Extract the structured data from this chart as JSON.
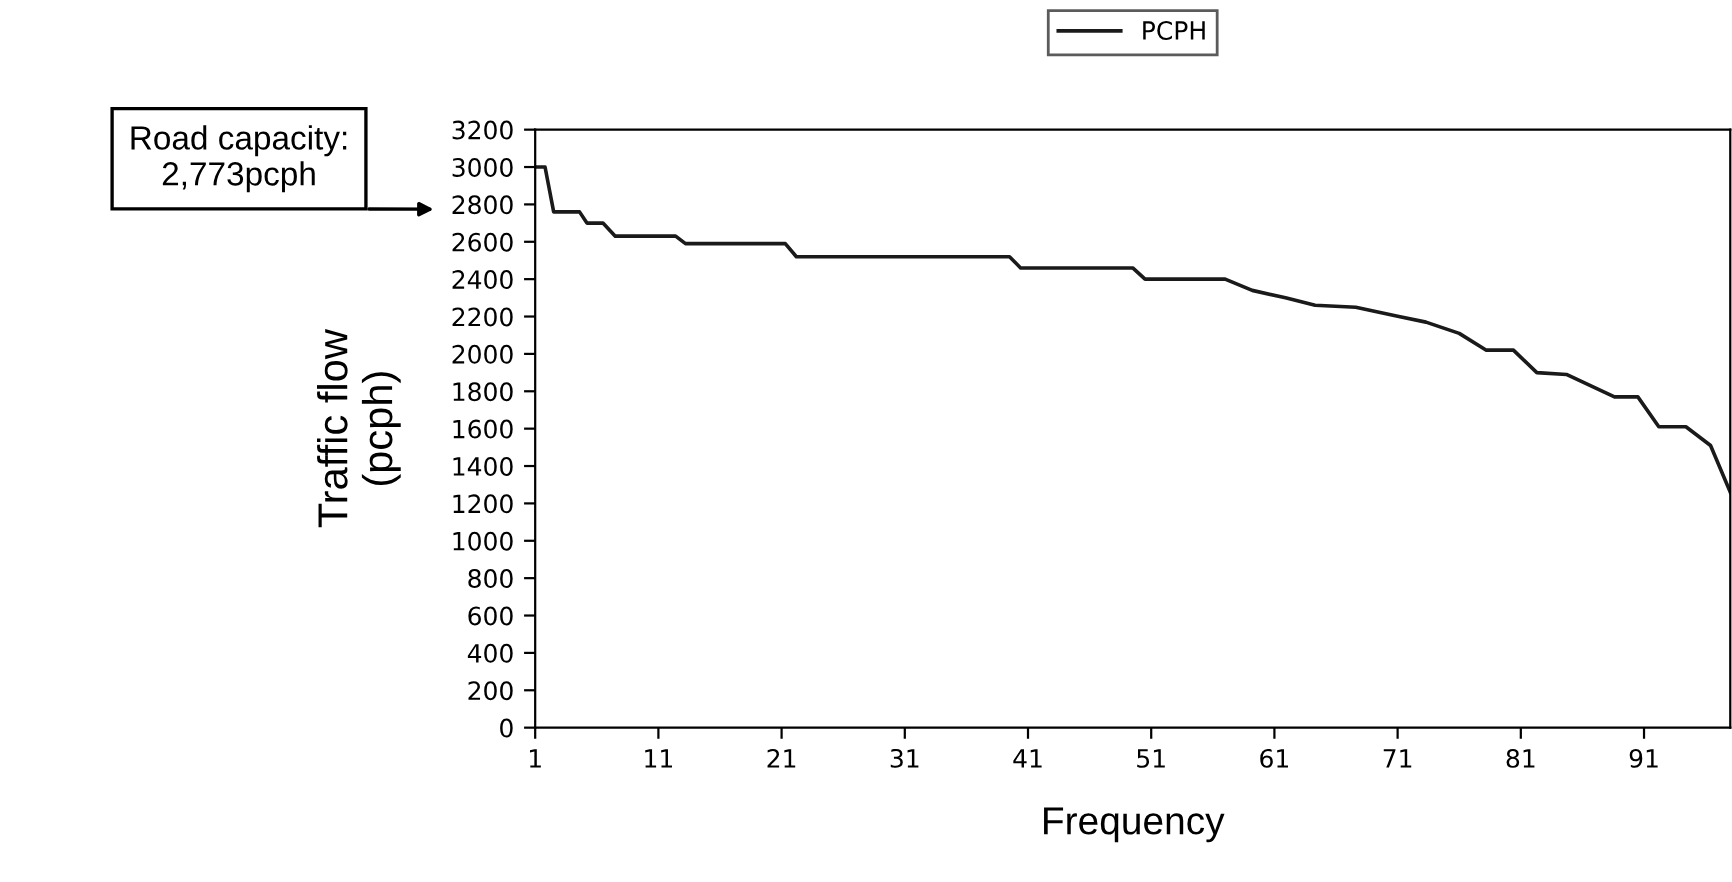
{
  "chart_data": {
    "type": "line",
    "xlabel": "Frequency",
    "ylabel": "Traffic flow\n(pcph)",
    "x": [
      1,
      1.8,
      2.5,
      4.6,
      5.2,
      6.5,
      7.5,
      12.4,
      13.2,
      21.3,
      22.2,
      39.5,
      40.4,
      49.5,
      50.5,
      57,
      59.2,
      61.9,
      64.3,
      67.6,
      71.1,
      73.3,
      76,
      78.2,
      80.4,
      82.3,
      84.7,
      88.6,
      90.5,
      92.2,
      94.4,
      96.4,
      98
    ],
    "series": [
      {
        "name": "PCPH",
        "color": "#1a1a1a",
        "values": [
          3000,
          3000,
          2760,
          2760,
          2700,
          2700,
          2630,
          2630,
          2590,
          2590,
          2520,
          2520,
          2460,
          2460,
          2400,
          2400,
          2340,
          2300,
          2260,
          2250,
          2200,
          2170,
          2110,
          2020,
          2020,
          1900,
          1890,
          1770,
          1770,
          1610,
          1610,
          1510,
          1260
        ]
      }
    ],
    "xlim": [
      1,
      98
    ],
    "xticks": [
      1,
      11,
      21,
      31,
      41,
      51,
      61,
      71,
      81,
      91
    ],
    "ylim": [
      0,
      3200
    ],
    "yticks": [
      0,
      200,
      400,
      600,
      800,
      1000,
      1200,
      1400,
      1600,
      1800,
      2000,
      2200,
      2400,
      2600,
      2800,
      3000,
      3200
    ],
    "annotations": [
      "Road capacity:\n2,773pcph"
    ],
    "grid": false,
    "legend": "top",
    "marker": "none",
    "line_style": "solid"
  }
}
